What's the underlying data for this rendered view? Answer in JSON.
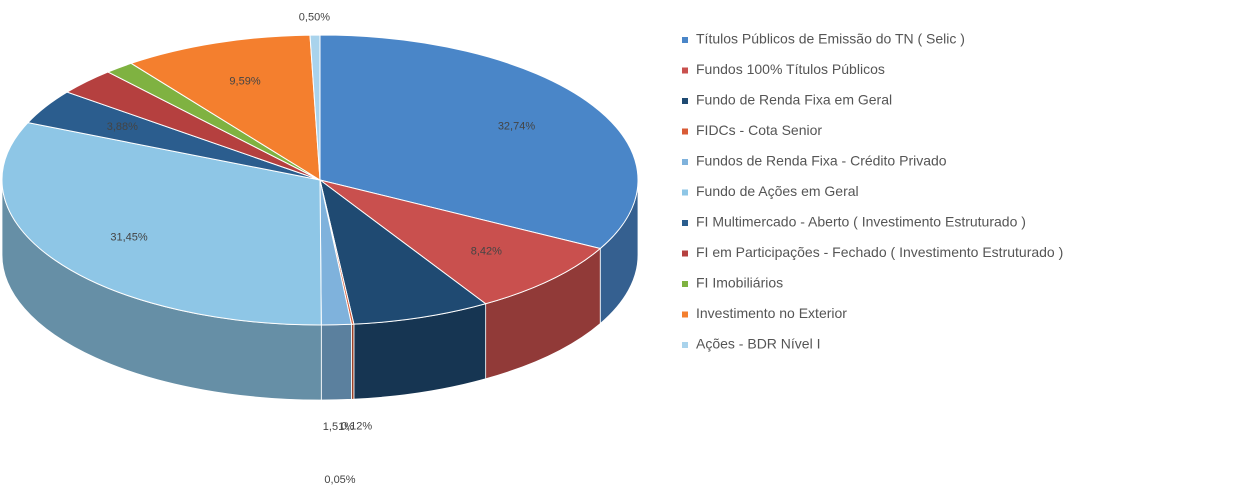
{
  "chart_data": {
    "type": "pie3d",
    "categories": [
      "Títulos Públicos de Emissão do TN ( Selic )",
      "Fundos  100% Títulos Públicos",
      "Fundo de Renda Fixa em Geral",
      "FIDCs - Cota Senior",
      "Fundos de Renda Fixa - Crédito Privado",
      "Fundo de Ações em Geral",
      "FI Multimercado - Aberto ( Investimento Estruturado )",
      "FI em Participações - Fechado ( Investimento Estruturado )",
      "FI Imobiliários",
      "Investimento no Exterior",
      "Ações - BDR Nível I"
    ],
    "values": [
      32.74,
      8.42,
      7.0,
      0.12,
      1.51,
      31.45,
      3.88,
      3.0,
      1.5,
      9.59,
      0.5
    ],
    "value_labels": [
      "32,74%",
      "8,42%",
      null,
      "0,12%",
      "1,51%",
      "31,45%",
      "3,88%",
      null,
      null,
      "9,59%",
      "0,50%"
    ],
    "colors": [
      "#4a86c8",
      "#c9504e",
      "#1f4a72",
      "#d95b36",
      "#7fb2dc",
      "#8ec6e6",
      "#2b5d8e",
      "#b5403f",
      "#7fb241",
      "#f47f2e",
      "#a9d3ec"
    ],
    "annotations": [
      "0,05%"
    ],
    "legend": "right"
  }
}
